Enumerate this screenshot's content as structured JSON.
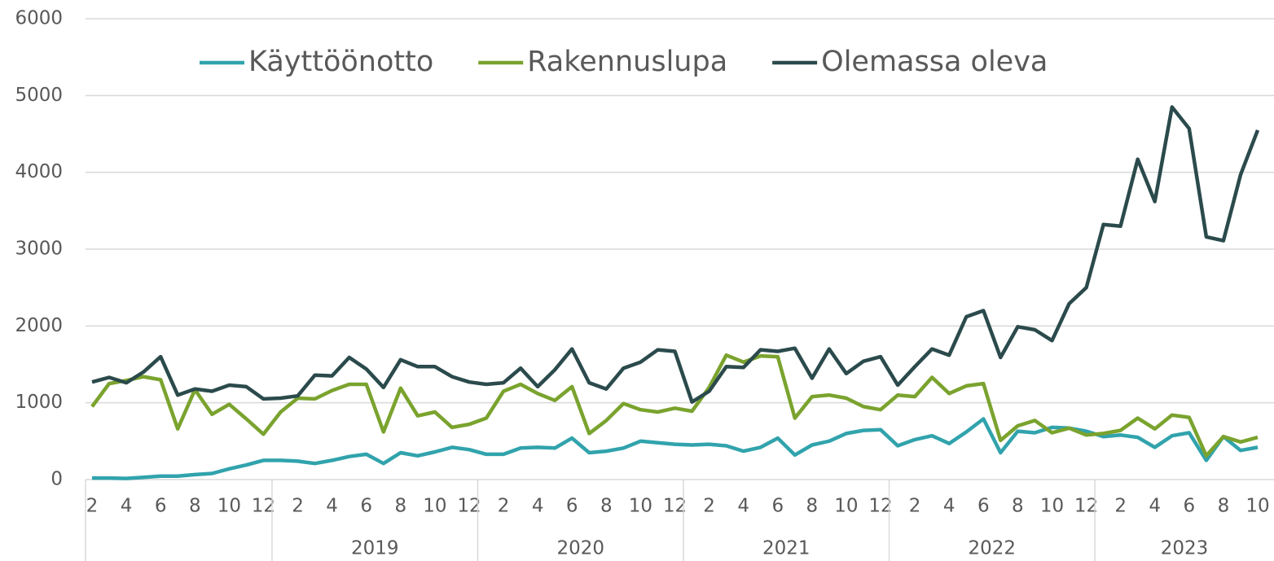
{
  "chart_data": {
    "type": "line",
    "categories": [
      "2",
      null,
      "4",
      null,
      "6",
      null,
      "8",
      null,
      "10",
      null,
      "12",
      null,
      "2",
      null,
      "4",
      null,
      "6",
      null,
      "8",
      null,
      "10",
      null,
      "12",
      null,
      "2",
      null,
      "4",
      null,
      "6",
      null,
      "8",
      null,
      "10",
      null,
      "12",
      null,
      "2",
      null,
      "4",
      null,
      "6",
      null,
      "8",
      null,
      "10",
      null,
      "12",
      null,
      "2",
      null,
      "4",
      null,
      "6",
      null,
      "8",
      null,
      "10",
      null,
      "12",
      null,
      "2",
      null,
      "4",
      null,
      "6",
      null,
      "8",
      null,
      "10"
    ],
    "groups": [
      null,
      "2019",
      "2020",
      "2021",
      "2022",
      "2023"
    ],
    "series": [
      {
        "name": "Käyttöönotto",
        "color": "#31a3ac",
        "values": [
          20,
          20,
          15,
          30,
          45,
          45,
          65,
          80,
          140,
          190,
          250,
          250,
          240,
          210,
          250,
          300,
          330,
          210,
          350,
          310,
          360,
          420,
          390,
          330,
          330,
          410,
          420,
          410,
          540,
          350,
          370,
          410,
          500,
          480,
          460,
          450,
          460,
          440,
          370,
          420,
          540,
          320,
          450,
          500,
          600,
          640,
          650,
          440,
          520,
          570,
          470,
          620,
          790,
          350,
          630,
          610,
          680,
          670,
          630,
          560,
          580,
          550,
          420,
          570,
          610,
          250,
          560,
          380,
          420
        ]
      },
      {
        "name": "Rakennuslupa",
        "color": "#7aa32e",
        "values": [
          950,
          1250,
          1290,
          1340,
          1300,
          660,
          1170,
          850,
          980,
          790,
          590,
          880,
          1060,
          1050,
          1160,
          1240,
          1240,
          620,
          1190,
          830,
          880,
          680,
          720,
          800,
          1150,
          1240,
          1120,
          1030,
          1210,
          600,
          770,
          990,
          910,
          880,
          930,
          890,
          1200,
          1620,
          1530,
          1610,
          1600,
          800,
          1080,
          1100,
          1060,
          950,
          910,
          1100,
          1080,
          1330,
          1120,
          1220,
          1250,
          510,
          700,
          770,
          610,
          670,
          580,
          600,
          640,
          800,
          660,
          840,
          810,
          310,
          560,
          490,
          550
        ]
      },
      {
        "name": "Olemassa oleva",
        "color": "#2b4a4c",
        "values": [
          1270,
          1330,
          1260,
          1400,
          1600,
          1100,
          1180,
          1150,
          1230,
          1210,
          1050,
          1060,
          1090,
          1360,
          1350,
          1590,
          1440,
          1200,
          1560,
          1470,
          1470,
          1340,
          1270,
          1240,
          1260,
          1450,
          1210,
          1430,
          1700,
          1260,
          1180,
          1450,
          1530,
          1690,
          1670,
          1010,
          1150,
          1470,
          1460,
          1690,
          1670,
          1710,
          1320,
          1700,
          1380,
          1540,
          1600,
          1230,
          1470,
          1700,
          1620,
          2120,
          2200,
          1590,
          1990,
          1950,
          1810,
          2290,
          2500,
          3320,
          3300,
          4170,
          3620,
          4850,
          4570,
          3160,
          3110,
          3970,
          4550
        ]
      }
    ],
    "ylim": [
      0,
      6000
    ],
    "yticks": [
      0,
      1000,
      2000,
      3000,
      4000,
      5000,
      6000
    ],
    "grid": true,
    "legend": "top"
  }
}
